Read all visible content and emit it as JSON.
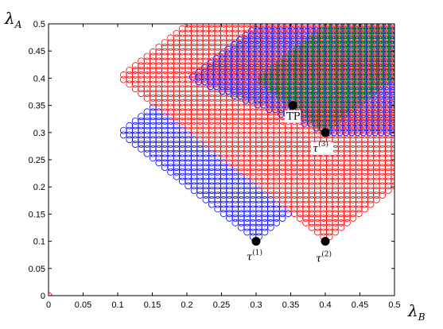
{
  "chart_data": {
    "type": "scatter",
    "xlabel": "λ",
    "xlabel_sub": "B",
    "ylabel": "λ",
    "ylabel_sub": "A",
    "xlim": [
      0,
      0.5
    ],
    "ylim": [
      0,
      0.5
    ],
    "xticks": [
      "0",
      "0.05",
      "0.1",
      "0.15",
      "0.2",
      "0.25",
      "0.3",
      "0.35",
      "0.4",
      "0.45",
      "0.5"
    ],
    "yticks": [
      "0",
      "0.05",
      "0.1",
      "0.15",
      "0.2",
      "0.25",
      "0.3",
      "0.35",
      "0.4",
      "0.45",
      "0.5"
    ],
    "grid": false,
    "marker": "open-circle",
    "regions": [
      {
        "color": "#ff0000",
        "vertices": [
          [
            0.1,
            0.4
          ],
          [
            0.2,
            0.5
          ],
          [
            0.5,
            0.5
          ],
          [
            0.5,
            0.2
          ],
          [
            0.4,
            0.1
          ]
        ],
        "description_color": "red"
      },
      {
        "color": "#0000ff",
        "vertices": [
          [
            0.1,
            0.3
          ],
          [
            0.15,
            0.35
          ],
          [
            0.35,
            0.15
          ],
          [
            0.3,
            0.1
          ]
        ],
        "description_color": "blue"
      },
      {
        "color": "#0000ff",
        "vertices": [
          [
            0.2,
            0.4
          ],
          [
            0.3,
            0.5
          ],
          [
            0.5,
            0.5
          ],
          [
            0.5,
            0.3
          ],
          [
            0.4,
            0.3
          ]
        ],
        "description_color": "blue"
      },
      {
        "color": "#008000",
        "vertices": [
          [
            0.3,
            0.4
          ],
          [
            0.4,
            0.5
          ],
          [
            0.5,
            0.5
          ],
          [
            0.5,
            0.4
          ],
          [
            0.4,
            0.3
          ]
        ],
        "description_color": "green"
      }
    ],
    "origin_point": {
      "x": 0,
      "y": 0,
      "color": "#ff0000"
    },
    "annotations": [
      {
        "label": "TP",
        "sup": "",
        "x": 0.353,
        "y": 0.35
      },
      {
        "label": "τ",
        "sup": "(3)",
        "x": 0.4,
        "y": 0.3
      },
      {
        "label": "τ",
        "sup": "(1)",
        "x": 0.3,
        "y": 0.1
      },
      {
        "label": "τ",
        "sup": "(2)",
        "x": 0.4,
        "y": 0.1
      }
    ]
  }
}
